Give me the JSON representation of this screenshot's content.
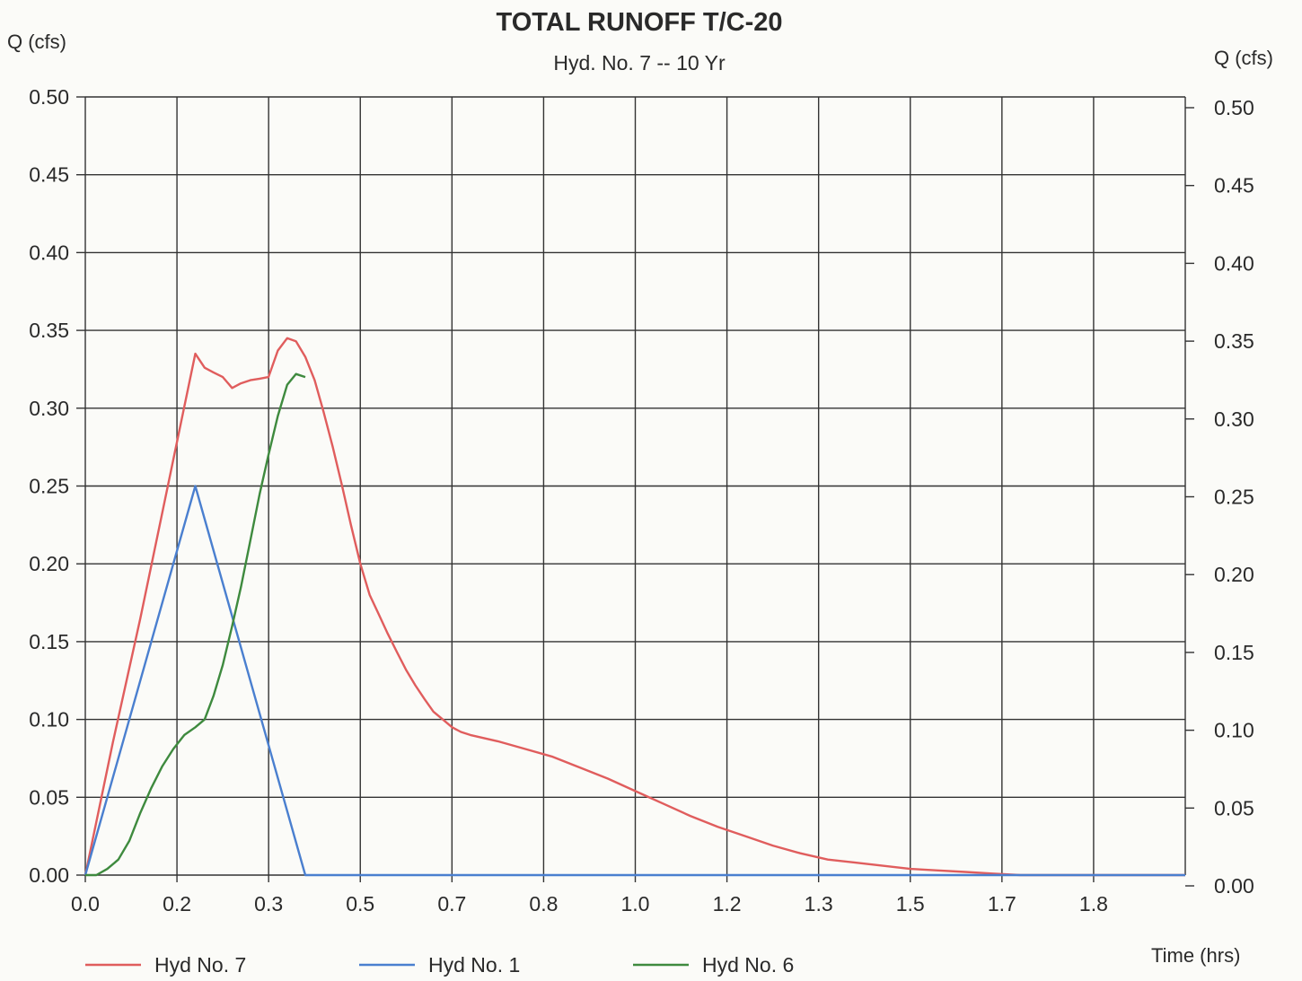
{
  "chart_data": {
    "type": "line",
    "title": "TOTAL RUNOFF T/C-20",
    "subtitle": "Hyd. No. 7 -- 10 Yr",
    "ylabel_left": "Q (cfs)",
    "ylabel_right": "Q (cfs)",
    "xlabel": "Time (hrs)",
    "xlim": [
      0,
      2.0
    ],
    "ylim": [
      0,
      0.5
    ],
    "x_tick_labels": [
      "0.0",
      "0.2",
      "0.3",
      "0.5",
      "0.7",
      "0.8",
      "1.0",
      "1.2",
      "1.3",
      "1.5",
      "1.7",
      "1.8"
    ],
    "y_tick_labels": [
      "0.00",
      "0.05",
      "0.10",
      "0.15",
      "0.20",
      "0.25",
      "0.30",
      "0.35",
      "0.40",
      "0.45",
      "0.50"
    ],
    "grid": true,
    "legend_position": "bottom-left",
    "series": [
      {
        "name": "Hyd No. 7",
        "color": "#e05d5d",
        "x": [
          0.0,
          0.05,
          0.1,
          0.15,
          0.2,
          0.217,
          0.233,
          0.25,
          0.267,
          0.283,
          0.3,
          0.317,
          0.333,
          0.35,
          0.367,
          0.383,
          0.4,
          0.417,
          0.433,
          0.45,
          0.467,
          0.483,
          0.5,
          0.517,
          0.533,
          0.55,
          0.567,
          0.583,
          0.6,
          0.617,
          0.633,
          0.65,
          0.667,
          0.683,
          0.7,
          0.75,
          0.8,
          0.85,
          0.9,
          0.95,
          1.0,
          1.05,
          1.1,
          1.15,
          1.2,
          1.25,
          1.3,
          1.35,
          1.4,
          1.45,
          1.5,
          1.55,
          1.6,
          1.65,
          1.7,
          1.75,
          1.8,
          1.85,
          1.9,
          1.95,
          2.0
        ],
        "values": [
          0.0,
          0.085,
          0.165,
          0.25,
          0.335,
          0.326,
          0.323,
          0.32,
          0.313,
          0.316,
          0.318,
          0.319,
          0.32,
          0.337,
          0.345,
          0.343,
          0.333,
          0.318,
          0.298,
          0.275,
          0.25,
          0.225,
          0.2,
          0.18,
          0.168,
          0.155,
          0.143,
          0.132,
          0.122,
          0.113,
          0.105,
          0.1,
          0.095,
          0.092,
          0.09,
          0.086,
          0.081,
          0.076,
          0.069,
          0.062,
          0.054,
          0.046,
          0.038,
          0.031,
          0.025,
          0.019,
          0.014,
          0.01,
          0.008,
          0.006,
          0.004,
          0.003,
          0.002,
          0.001,
          0.0,
          0.0,
          0.0,
          0.0,
          0.0,
          0.0,
          0.0
        ]
      },
      {
        "name": "Hyd No. 1",
        "color": "#4a7fcf",
        "x": [
          0.0,
          0.2,
          0.4,
          0.5,
          1.0,
          1.5,
          2.0
        ],
        "values": [
          0.0,
          0.25,
          0.0,
          0.0,
          0.0,
          0.0,
          0.0
        ]
      },
      {
        "name": "Hyd No. 6",
        "color": "#3e8a3e",
        "x": [
          0.0,
          0.02,
          0.04,
          0.06,
          0.08,
          0.1,
          0.12,
          0.14,
          0.16,
          0.18,
          0.2,
          0.217,
          0.233,
          0.25,
          0.267,
          0.283,
          0.3,
          0.317,
          0.333,
          0.35,
          0.367,
          0.383,
          0.4
        ],
        "values": [
          0.0,
          0.0,
          0.004,
          0.01,
          0.022,
          0.04,
          0.056,
          0.07,
          0.081,
          0.09,
          0.095,
          0.1,
          0.115,
          0.135,
          0.16,
          0.185,
          0.215,
          0.245,
          0.27,
          0.295,
          0.315,
          0.322,
          0.32
        ]
      }
    ]
  }
}
